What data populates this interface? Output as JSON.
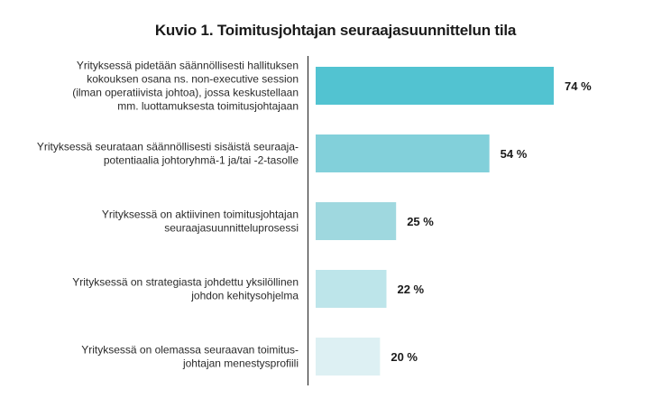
{
  "chart_data": {
    "type": "bar",
    "orientation": "horizontal",
    "title": "Kuvio 1. Toimitusjohtajan seuraajasuunnittelun tila",
    "categories": [
      [
        "Yrityksessä pidetään säännöllisesti hallituksen",
        "kokouksen osana ns. non-executive session",
        "(ilman operatiivista johtoa), jossa keskustellaan",
        "mm. luottamuksesta toimitusjohtajaan"
      ],
      [
        "Yrityksessä seurataan säännöllisesti sisäistä seuraaja-",
        "potentiaalia johtoryhmä-1 ja/tai -2-tasolle"
      ],
      [
        "Yrityksessä on aktiivinen toimitusjohtajan",
        "seuraajasuunnitteluprosessi"
      ],
      [
        "Yrityksessä on strategiasta johdettu yksilöllinen",
        "johdon kehitysohjelma"
      ],
      [
        "Yrityksessä on olemassa seuraavan toimitus-",
        "johtajan menestysprofiili"
      ]
    ],
    "values": [
      74,
      54,
      25,
      22,
      20
    ],
    "value_labels": [
      "74 %",
      "54 %",
      "25 %",
      "22 %",
      "20 %"
    ],
    "bar_colors": [
      "#52c3d1",
      "#82d0da",
      "#9fd8df",
      "#bde5ea",
      "#ddf0f3"
    ],
    "xlim": [
      0,
      100
    ],
    "grid": false,
    "xlabel": "",
    "ylabel": ""
  }
}
